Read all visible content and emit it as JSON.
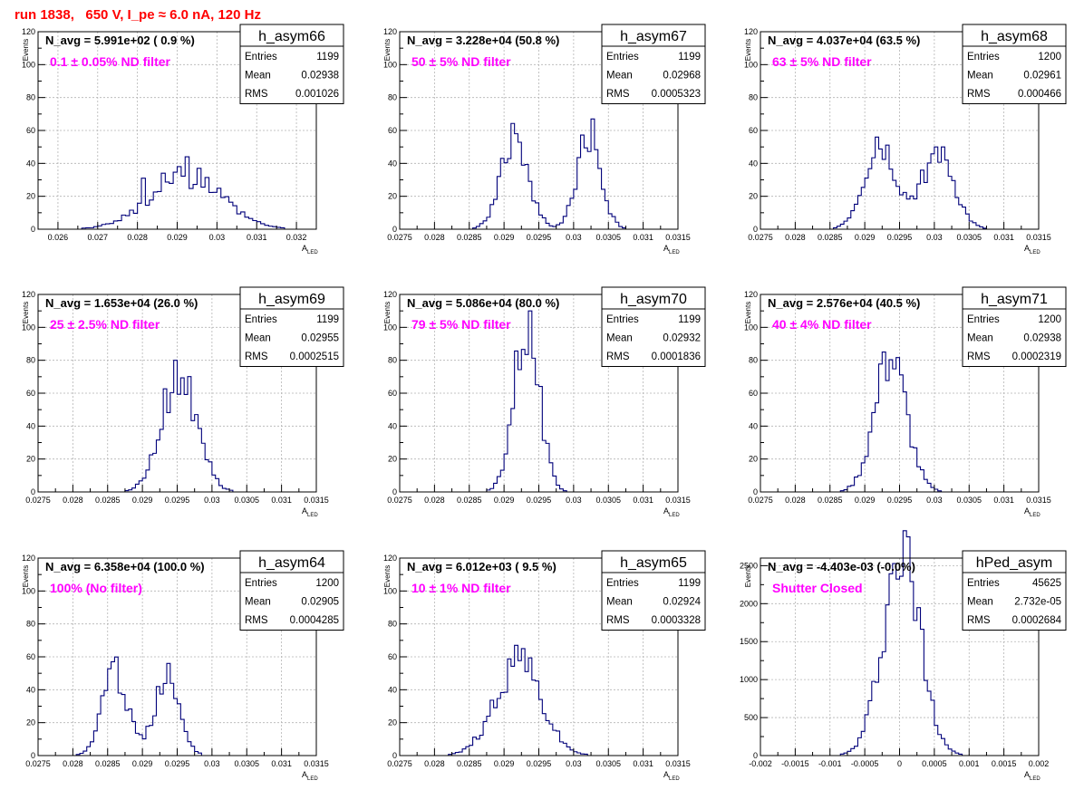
{
  "title": "run 1838,   650 V, I_pe ≈ 6.0 nA, 120 Hz",
  "colors": {
    "title": "#ff0000",
    "annotation": "#ff00ff",
    "histogram": "#00007a",
    "grid": "#b4b4b4"
  },
  "stat_labels": {
    "entries": "Entries",
    "mean": "Mean",
    "rms": "RMS"
  },
  "y_axis_label": "Events",
  "x_axis_label_main": "A",
  "x_axis_label_sub": "LED",
  "chart_data": [
    {
      "type": "histogram",
      "name": "h_asym66",
      "navg": "N_avg = 5.991e+02 ( 0.9 %)",
      "filter": "0.1 ± 0.05% ND filter",
      "entries": "1199",
      "mean": "0.02938",
      "rms": "0.001026",
      "xlim": [
        0.0255,
        0.0325
      ],
      "ylim": [
        0,
        120
      ],
      "xticks": [
        "0.026",
        "0.027",
        "0.028",
        "0.029",
        "0.03",
        "0.031",
        "0.032"
      ],
      "yticks": [
        "0",
        "20",
        "40",
        "60",
        "80",
        "100",
        "120"
      ],
      "bin_width": 0.0001,
      "peaks": [
        {
          "mu": 0.0292,
          "sigma": 0.0009,
          "amp": 32
        }
      ],
      "highlights": [
        {
          "x": 0.02925,
          "y": 44
        },
        {
          "x": 0.02955,
          "y": 37
        },
        {
          "x": 0.02905,
          "y": 38
        },
        {
          "x": 0.02815,
          "y": 31
        },
        {
          "x": 0.02865,
          "y": 34
        }
      ]
    },
    {
      "type": "histogram",
      "name": "h_asym67",
      "navg": "N_avg = 3.228e+04 (50.8 %)",
      "filter": "50 ± 5% ND filter",
      "entries": "1199",
      "mean": "0.02968",
      "rms": "0.0005323",
      "xlim": [
        0.0275,
        0.0315
      ],
      "ylim": [
        0,
        120
      ],
      "xticks": [
        "0.0275",
        "0.028",
        "0.0285",
        "0.029",
        "0.0295",
        "0.03",
        "0.0305",
        "0.031",
        "0.0315"
      ],
      "yticks": [
        "0",
        "20",
        "40",
        "60",
        "80",
        "100",
        "120"
      ],
      "bin_width": 5e-05,
      "peaks": [
        {
          "mu": 0.02915,
          "sigma": 0.0002,
          "amp": 54
        },
        {
          "mu": 0.03022,
          "sigma": 0.00017,
          "amp": 60
        }
      ],
      "highlights": [
        {
          "x": 0.03027,
          "y": 67
        },
        {
          "x": 0.02917,
          "y": 58
        }
      ]
    },
    {
      "type": "histogram",
      "name": "h_asym68",
      "navg": "N_avg = 4.037e+04 (63.5 %)",
      "filter": "63 ± 5% ND filter",
      "entries": "1200",
      "mean": "0.02961",
      "rms": "0.000466",
      "xlim": [
        0.0275,
        0.0315
      ],
      "ylim": [
        0,
        120
      ],
      "xticks": [
        "0.0275",
        "0.028",
        "0.0285",
        "0.029",
        "0.0295",
        "0.03",
        "0.0305",
        "0.031",
        "0.0315"
      ],
      "yticks": [
        "0",
        "20",
        "40",
        "60",
        "80",
        "100",
        "120"
      ],
      "bin_width": 5e-05,
      "peaks": [
        {
          "mu": 0.02922,
          "sigma": 0.00023,
          "amp": 50
        },
        {
          "mu": 0.03005,
          "sigma": 0.00023,
          "amp": 46
        }
      ],
      "highlights": [
        {
          "x": 0.02917,
          "y": 56
        },
        {
          "x": 0.03012,
          "y": 50
        },
        {
          "x": 0.03002,
          "y": 50
        }
      ]
    },
    {
      "type": "histogram",
      "name": "h_asym69",
      "navg": "N_avg = 1.653e+04 (26.0 %)",
      "filter": "25 ± 2.5% ND filter",
      "entries": "1199",
      "mean": "0.02955",
      "rms": "0.0002515",
      "xlim": [
        0.0275,
        0.0315
      ],
      "ylim": [
        0,
        120
      ],
      "xticks": [
        "0.0275",
        "0.028",
        "0.0285",
        "0.029",
        "0.0295",
        "0.03",
        "0.0305",
        "0.031",
        "0.0315"
      ],
      "yticks": [
        "0",
        "20",
        "40",
        "60",
        "80",
        "100",
        "120"
      ],
      "bin_width": 5e-05,
      "peaks": [
        {
          "mu": 0.02953,
          "sigma": 0.00025,
          "amp": 74
        }
      ],
      "highlights": [
        {
          "x": 0.02947,
          "y": 80
        }
      ]
    },
    {
      "type": "histogram",
      "name": "h_asym70",
      "navg": "N_avg = 5.086e+04 (80.0 %)",
      "filter": "79 ± 5% ND filter",
      "entries": "1199",
      "mean": "0.02932",
      "rms": "0.0001836",
      "xlim": [
        0.0275,
        0.0315
      ],
      "ylim": [
        0,
        120
      ],
      "xticks": [
        "0.0275",
        "0.028",
        "0.0285",
        "0.029",
        "0.0295",
        "0.03",
        "0.0305",
        "0.031",
        "0.0315"
      ],
      "yticks": [
        "0",
        "20",
        "40",
        "60",
        "80",
        "100",
        "120"
      ],
      "bin_width": 5e-05,
      "peaks": [
        {
          "mu": 0.02932,
          "sigma": 0.00018,
          "amp": 104
        }
      ],
      "highlights": [
        {
          "x": 0.02937,
          "y": 110
        }
      ]
    },
    {
      "type": "histogram",
      "name": "h_asym71",
      "navg": "N_avg = 2.576e+04 (40.5 %)",
      "filter": "40 ± 4% ND filter",
      "entries": "1200",
      "mean": "0.02938",
      "rms": "0.0002319",
      "xlim": [
        0.0275,
        0.0315
      ],
      "ylim": [
        0,
        120
      ],
      "xticks": [
        "0.0275",
        "0.028",
        "0.0285",
        "0.029",
        "0.0295",
        "0.03",
        "0.0305",
        "0.031",
        "0.0315"
      ],
      "yticks": [
        "0",
        "20",
        "40",
        "60",
        "80",
        "100",
        "120"
      ],
      "bin_width": 5e-05,
      "peaks": [
        {
          "mu": 0.02937,
          "sigma": 0.00023,
          "amp": 80
        }
      ],
      "highlights": [
        {
          "x": 0.02927,
          "y": 85
        }
      ]
    },
    {
      "type": "histogram",
      "name": "h_asym64",
      "navg": "N_avg = 6.358e+04 (100.0 %)",
      "filter": "100% (No filter)",
      "entries": "1200",
      "mean": "0.02905",
      "rms": "0.0004285",
      "xlim": [
        0.0275,
        0.0315
      ],
      "ylim": [
        0,
        120
      ],
      "xticks": [
        "0.0275",
        "0.028",
        "0.0285",
        "0.029",
        "0.0295",
        "0.03",
        "0.0305",
        "0.031",
        "0.0315"
      ],
      "yticks": [
        "0",
        "20",
        "40",
        "60",
        "80",
        "100",
        "120"
      ],
      "bin_width": 5e-05,
      "peaks": [
        {
          "mu": 0.0286,
          "sigma": 0.00018,
          "amp": 50
        },
        {
          "mu": 0.02935,
          "sigma": 0.00018,
          "amp": 48
        }
      ],
      "highlights": [
        {
          "x": 0.02857,
          "y": 57
        },
        {
          "x": 0.02937,
          "y": 56
        }
      ]
    },
    {
      "type": "histogram",
      "name": "h_asym65",
      "navg": "N_avg = 6.012e+03 ( 9.5 %)",
      "filter": "10 ± 1% ND filter",
      "entries": "1199",
      "mean": "0.02924",
      "rms": "0.0003328",
      "xlim": [
        0.0275,
        0.0315
      ],
      "ylim": [
        0,
        120
      ],
      "xticks": [
        "0.0275",
        "0.028",
        "0.0285",
        "0.029",
        "0.0295",
        "0.03",
        "0.0305",
        "0.031",
        "0.0315"
      ],
      "yticks": [
        "0",
        "20",
        "40",
        "60",
        "80",
        "100",
        "120"
      ],
      "bin_width": 5e-05,
      "peaks": [
        {
          "mu": 0.0292,
          "sigma": 0.00033,
          "amp": 56
        }
      ],
      "highlights": [
        {
          "x": 0.02917,
          "y": 67
        },
        {
          "x": 0.02927,
          "y": 65
        }
      ]
    },
    {
      "type": "histogram",
      "name": "hPed_asym",
      "navg": "N_avg = -4.403e-03 (-0.0%)",
      "filter": "Shutter Closed",
      "entries": "45625",
      "mean": "2.732e-05",
      "rms": "0.0002684",
      "xlim": [
        -0.002,
        0.002
      ],
      "ylim": [
        0,
        2600
      ],
      "xticks": [
        "-0.002",
        "-0.0015",
        "-0.001",
        "-0.0005",
        "0",
        "0.0005",
        "0.001",
        "0.0015",
        "0.002"
      ],
      "yticks": [
        "0",
        "500",
        "1000",
        "1500",
        "2000",
        "2500"
      ],
      "bin_width": 5e-05,
      "peaks": [
        {
          "mu": 3e-05,
          "sigma": 0.00027,
          "amp": 2550
        }
      ],
      "highlights": []
    }
  ]
}
